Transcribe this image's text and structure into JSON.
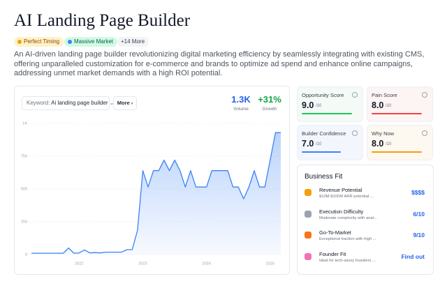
{
  "header": {
    "title": "AI Landing Page Builder",
    "tags": [
      "Perfect Timing",
      "Massive Market",
      "+14 More"
    ],
    "description": "An AI-driven landing page builder revolutionizing digital marketing efficiency by seamlessly integrating with existing CMS, offering unparalleled customization for e-commerce and brands to optimize ad spend and enhance online campaigns, addressing unmet market demands with a high ROI potential."
  },
  "keyword_panel": {
    "keyword_label": "Keyword:",
    "keyword": "Ai landing page builder",
    "more_button": "More",
    "stats": [
      {
        "value": "1.3K",
        "label": "Volume"
      },
      {
        "value": "+31%",
        "label": "Growth"
      }
    ]
  },
  "chart_data": {
    "type": "area",
    "categories": [
      null,
      null,
      null,
      null,
      null,
      null,
      null,
      null,
      null,
      "2022",
      null,
      null,
      null,
      null,
      null,
      null,
      null,
      null,
      null,
      null,
      null,
      "2023",
      null,
      null,
      null,
      null,
      null,
      null,
      null,
      null,
      null,
      null,
      null,
      "2024",
      null,
      null,
      null,
      null,
      null,
      null,
      null,
      null,
      null,
      null,
      null,
      "2025",
      null,
      null
    ],
    "values": [
      10,
      10,
      10,
      10,
      10,
      10,
      10,
      50,
      10,
      12,
      35,
      12,
      15,
      12,
      18,
      18,
      18,
      18,
      37,
      37,
      185,
      640,
      515,
      640,
      640,
      720,
      640,
      720,
      640,
      515,
      640,
      515,
      515,
      515,
      640,
      640,
      640,
      640,
      515,
      515,
      425,
      515,
      640,
      515,
      515,
      720,
      930,
      930
    ],
    "color": "#3b82f6",
    "ylim": [
      0,
      1000
    ],
    "yticks": [
      0,
      250,
      500,
      750,
      {
        "value": 1000,
        "label": "1K"
      }
    ],
    "grid": true
  },
  "scores": [
    {
      "name": "Opportunity Score",
      "value": "9.0",
      "max_label": "/10",
      "color": "#22c55e"
    },
    {
      "name": "Pain Score",
      "value": "8.0",
      "max_label": "/10",
      "color": "#ef4444"
    },
    {
      "name": "Builder Confidence",
      "value": "7.0",
      "max_label": "/10",
      "color": "#3b82f6"
    },
    {
      "name": "Why Now",
      "value": "8.0",
      "max_label": "/10",
      "color": "#f59e0b"
    }
  ],
  "business_fit": {
    "title": "Business Fit",
    "items": [
      {
        "title": "Revenue Potential",
        "subtitle": "$10M-$100M ARR potential ...",
        "value": "$$$$"
      },
      {
        "title": "Execution Difficulty",
        "subtitle": "Moderate complexity with anal...",
        "value": "6/10"
      },
      {
        "title": "Go-To-Market",
        "subtitle": "Exceptional traction with high ...",
        "value": "9/10"
      },
      {
        "title": "Founder Fit",
        "subtitle": "Ideal for tech-savvy founders ...",
        "value": "Find out"
      }
    ]
  }
}
